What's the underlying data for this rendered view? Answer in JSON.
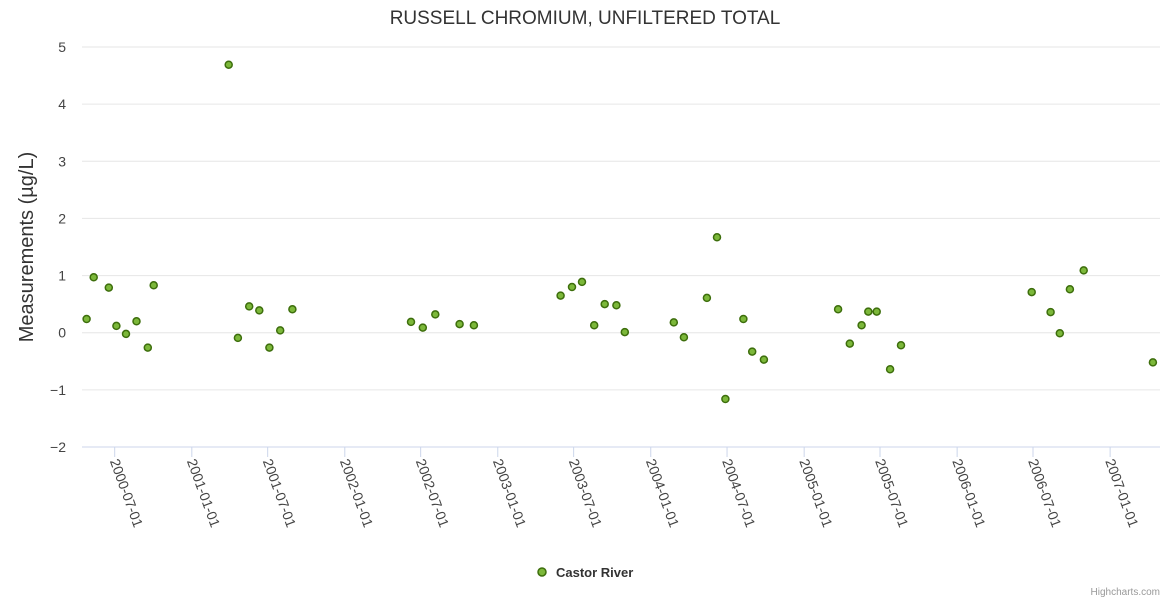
{
  "chart_data": {
    "type": "scatter",
    "title": "RUSSELL CHROMIUM, UNFILTERED TOTAL",
    "xlabel": "",
    "ylabel": "Measurements (µg/L)",
    "ylim": [
      -2,
      5
    ],
    "yticks": [
      "−2",
      "−1",
      "0",
      "1",
      "2",
      "3",
      "4",
      "5"
    ],
    "xlim": [
      "2000-04-14",
      "2007-04-30"
    ],
    "xticks": [
      {
        "date": "2000-07-01",
        "label": "2000-07-01"
      },
      {
        "date": "2001-01-01",
        "label": "2001-01-01"
      },
      {
        "date": "2001-07-01",
        "label": "2001-07-01"
      },
      {
        "date": "2002-01-01",
        "label": "2002-01-01"
      },
      {
        "date": "2002-07-01",
        "label": "2002-07-01"
      },
      {
        "date": "2003-01-01",
        "label": "2003-01-01"
      },
      {
        "date": "2003-07-01",
        "label": "2003-07-01"
      },
      {
        "date": "2004-01-01",
        "label": "2004-01-01"
      },
      {
        "date": "2004-07-01",
        "label": "2004-07-01"
      },
      {
        "date": "2005-01-01",
        "label": "2005-01-01"
      },
      {
        "date": "2005-07-01",
        "label": "2005-07-01"
      },
      {
        "date": "2006-01-01",
        "label": "2006-01-01"
      },
      {
        "date": "2006-07-01",
        "label": "2006-07-01"
      },
      {
        "date": "2007-01-01",
        "label": "2007-01-01"
      }
    ],
    "series": [
      {
        "name": "Castor River",
        "color": "#7cb83a",
        "points": [
          {
            "x": "2000-04-25",
            "y": 0.24
          },
          {
            "x": "2000-05-12",
            "y": 0.97
          },
          {
            "x": "2000-06-17",
            "y": 0.79
          },
          {
            "x": "2000-07-05",
            "y": 0.12
          },
          {
            "x": "2000-07-28",
            "y": -0.02
          },
          {
            "x": "2000-08-22",
            "y": 0.2
          },
          {
            "x": "2000-09-18",
            "y": -0.26
          },
          {
            "x": "2000-10-02",
            "y": 0.83
          },
          {
            "x": "2001-03-30",
            "y": 4.69
          },
          {
            "x": "2001-04-21",
            "y": -0.09
          },
          {
            "x": "2001-05-18",
            "y": 0.46
          },
          {
            "x": "2001-06-11",
            "y": 0.39
          },
          {
            "x": "2001-07-05",
            "y": -0.26
          },
          {
            "x": "2001-07-31",
            "y": 0.04
          },
          {
            "x": "2001-08-29",
            "y": 0.41
          },
          {
            "x": "2002-06-08",
            "y": 0.19
          },
          {
            "x": "2002-07-06",
            "y": 0.09
          },
          {
            "x": "2002-08-05",
            "y": 0.32
          },
          {
            "x": "2002-10-02",
            "y": 0.15
          },
          {
            "x": "2002-11-05",
            "y": 0.13
          },
          {
            "x": "2003-05-31",
            "y": 0.65
          },
          {
            "x": "2003-06-27",
            "y": 0.8
          },
          {
            "x": "2003-07-21",
            "y": 0.89
          },
          {
            "x": "2003-08-19",
            "y": 0.13
          },
          {
            "x": "2003-09-13",
            "y": 0.5
          },
          {
            "x": "2003-10-11",
            "y": 0.48
          },
          {
            "x": "2003-10-31",
            "y": 0.01
          },
          {
            "x": "2004-02-25",
            "y": 0.18
          },
          {
            "x": "2004-03-20",
            "y": -0.08
          },
          {
            "x": "2004-05-14",
            "y": 0.61
          },
          {
            "x": "2004-06-07",
            "y": 1.67
          },
          {
            "x": "2004-06-27",
            "y": -1.16
          },
          {
            "x": "2004-08-09",
            "y": 0.24
          },
          {
            "x": "2004-08-30",
            "y": -0.33
          },
          {
            "x": "2004-09-27",
            "y": -0.47
          },
          {
            "x": "2005-03-23",
            "y": 0.41
          },
          {
            "x": "2005-04-20",
            "y": -0.19
          },
          {
            "x": "2005-05-18",
            "y": 0.13
          },
          {
            "x": "2005-06-03",
            "y": 0.37
          },
          {
            "x": "2005-06-23",
            "y": 0.37
          },
          {
            "x": "2005-07-25",
            "y": -0.64
          },
          {
            "x": "2005-08-20",
            "y": -0.22
          },
          {
            "x": "2006-06-28",
            "y": 0.71
          },
          {
            "x": "2006-08-12",
            "y": 0.36
          },
          {
            "x": "2006-09-03",
            "y": -0.01
          },
          {
            "x": "2006-09-27",
            "y": 0.76
          },
          {
            "x": "2006-10-30",
            "y": 1.09
          },
          {
            "x": "2007-04-13",
            "y": -0.52
          }
        ]
      }
    ],
    "legend": {
      "position": "bottom-center",
      "label": "Castor River"
    },
    "credits": "Highcharts.com"
  }
}
